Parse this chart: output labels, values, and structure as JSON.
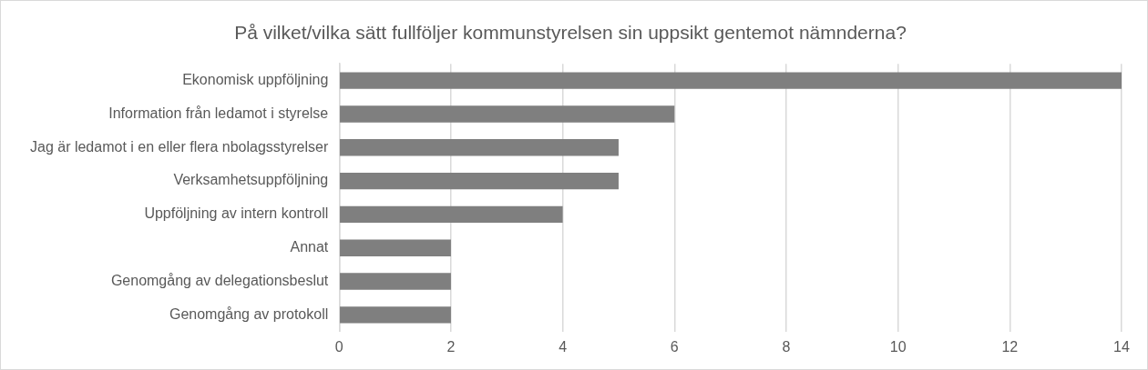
{
  "chart_data": {
    "type": "bar",
    "orientation": "horizontal",
    "title": "På vilket/vilka sätt fullföljer kommunstyrelsen sin uppsikt gentemot nämnderna?",
    "categories": [
      "Ekonomisk uppföljning",
      "Information från ledamot i styrelse",
      "Jag är ledamot i en eller flera nbolagsstyrelser",
      "Verksamhetsuppföljning",
      "Uppföljning av intern kontroll",
      "Annat",
      "Genomgång av delegationsbeslut",
      "Genomgång av protokoll"
    ],
    "values": [
      14,
      6,
      5,
      5,
      4,
      2,
      2,
      2
    ],
    "color": "#7f7f7f",
    "xlim": [
      0,
      14
    ],
    "xticks": [
      0,
      2,
      4,
      6,
      8,
      10,
      12,
      14
    ],
    "grid": "x"
  }
}
